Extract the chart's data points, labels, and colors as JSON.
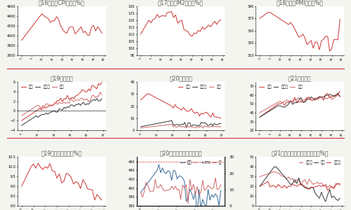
{
  "background": "#f5f5f0",
  "panel_bg": "#ffffff",
  "titles": [
    "图16：各国CPI增速（%）",
    "图17：各国M2增速（%）",
    "图18：各国PMI指数（%）",
    "图19：美国失业率（%）",
    "图20：彩博全球矿业股指数",
    "图21：中国固定资产投资增速（%）"
  ],
  "title_color": "#555555",
  "line_color_red": "#cc3333",
  "line_color_dark": "#333333",
  "line_color_teal": "#336699",
  "line_color_pink": "#cc6666",
  "separator_color": "#cc3333",
  "tick_fontsize": 4,
  "title_fontsize": 5.5,
  "legend_fontsize": 4
}
